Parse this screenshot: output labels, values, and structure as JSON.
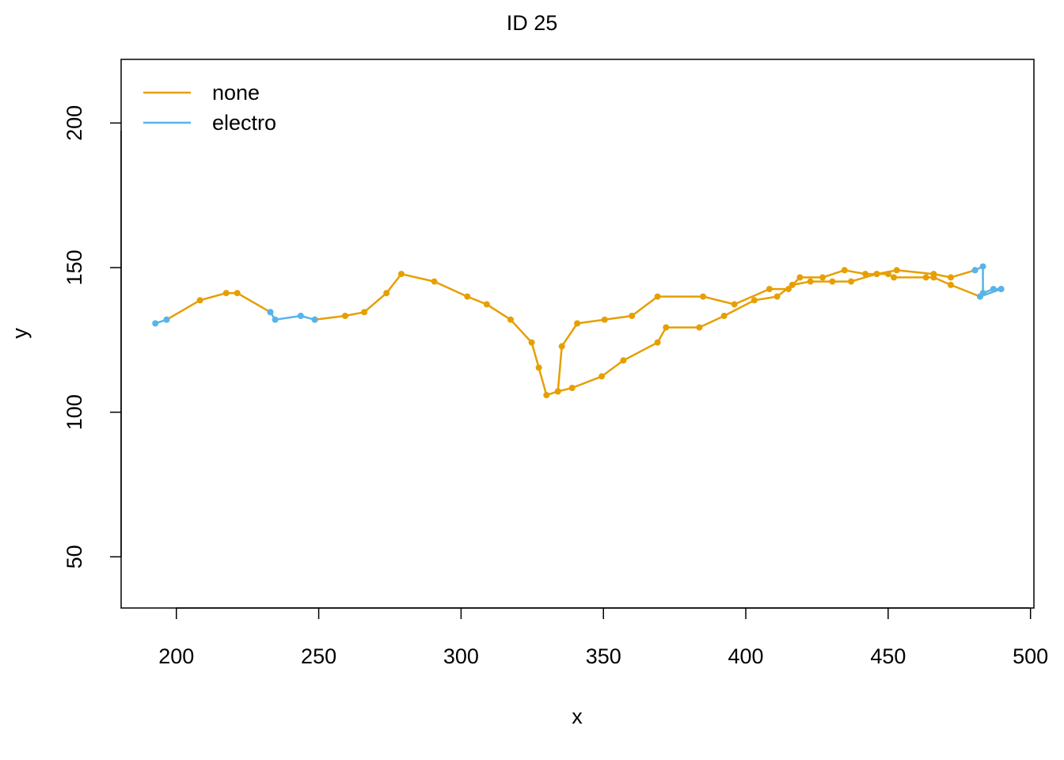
{
  "chart_data": {
    "type": "line",
    "title": "ID 25",
    "xlabel": "x",
    "ylabel": "y",
    "xlim": [
      180.6,
      501.2
    ],
    "ylim": [
      32.3,
      222.0
    ],
    "xticks": [
      200,
      250,
      300,
      350,
      400,
      450,
      500
    ],
    "yticks": [
      50,
      100,
      150,
      200
    ],
    "legend_position": "top-left",
    "series": [
      {
        "name": "none",
        "color": "#E69F00",
        "segments": [
          [
            [
              196.6,
              132.0
            ],
            [
              208.3,
              138.7
            ],
            [
              217.5,
              141.2
            ],
            [
              221.4,
              141.2
            ],
            [
              233.0,
              134.6
            ]
          ],
          [
            [
              248.6,
              132.0
            ],
            [
              259.3,
              133.3
            ],
            [
              266.0,
              134.6
            ],
            [
              273.8,
              141.2
            ],
            [
              279.0,
              147.8
            ],
            [
              290.6,
              145.2
            ],
            [
              302.2,
              140.0
            ],
            [
              309.0,
              137.3
            ],
            [
              317.4,
              132.0
            ],
            [
              324.8,
              124.1
            ],
            [
              327.3,
              115.4
            ],
            [
              330.0,
              105.9
            ],
            [
              334.0,
              107.2
            ],
            [
              335.4,
              122.8
            ],
            [
              340.8,
              130.7
            ],
            [
              350.4,
              132.0
            ],
            [
              360.0,
              133.3
            ],
            [
              369.0,
              140.0
            ],
            [
              385.0,
              140.0
            ],
            [
              396.0,
              137.3
            ],
            [
              408.3,
              142.6
            ],
            [
              415.0,
              142.6
            ],
            [
              419.0,
              146.6
            ],
            [
              427.0,
              146.6
            ],
            [
              434.7,
              149.1
            ],
            [
              442.0,
              147.8
            ],
            [
              446.0,
              147.8
            ],
            [
              453.0,
              149.1
            ],
            [
              466.0,
              147.8
            ],
            [
              472.0,
              146.6
            ],
            [
              480.5,
              149.1
            ]
          ],
          [
            [
              482.3,
              140.0
            ],
            [
              472.0,
              144.0
            ],
            [
              466.0,
              146.6
            ],
            [
              463.3,
              146.6
            ],
            [
              452.0,
              146.6
            ],
            [
              450.0,
              147.8
            ],
            [
              446.0,
              147.8
            ],
            [
              437.0,
              145.2
            ],
            [
              430.4,
              145.2
            ],
            [
              422.7,
              145.2
            ],
            [
              416.3,
              144.0
            ],
            [
              411.0,
              140.0
            ],
            [
              403.0,
              138.7
            ],
            [
              392.4,
              133.3
            ],
            [
              383.7,
              129.3
            ],
            [
              372.0,
              129.3
            ],
            [
              369.0,
              124.1
            ],
            [
              357.0,
              117.9
            ],
            [
              349.4,
              112.4
            ],
            [
              339.0,
              108.4
            ],
            [
              334.0,
              107.2
            ]
          ]
        ]
      },
      {
        "name": "electro",
        "color": "#56B4E9",
        "segments": [
          [
            [
              192.6,
              130.7
            ],
            [
              196.6,
              132.0
            ]
          ],
          [
            [
              233.0,
              134.6
            ],
            [
              234.7,
              132.0
            ],
            [
              243.7,
              133.3
            ],
            [
              248.6,
              132.0
            ]
          ],
          [
            [
              480.5,
              149.1
            ],
            [
              483.3,
              150.4
            ],
            [
              483.3,
              141.2
            ],
            [
              487.0,
              142.6
            ],
            [
              489.7,
              142.6
            ]
          ],
          [
            [
              489.7,
              142.6
            ],
            [
              482.3,
              140.0
            ]
          ]
        ]
      }
    ]
  }
}
